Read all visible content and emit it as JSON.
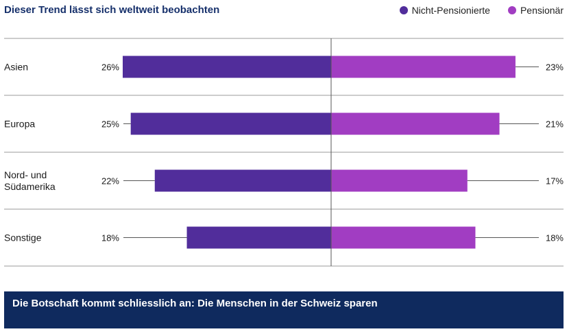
{
  "title": "Dieser Trend lässt sich weltweit beobachten",
  "legend": [
    {
      "label": "Nicht-Pensionierte",
      "color": "#512d9b"
    },
    {
      "label": "Pensionär",
      "color": "#a13dc2"
    }
  ],
  "chart_data": {
    "type": "bar",
    "orientation": "horizontal-diverging",
    "categories": [
      [
        "Asien"
      ],
      [
        "Europa"
      ],
      [
        "Nord- und",
        "Südamerika"
      ],
      [
        "Sonstige"
      ]
    ],
    "series": [
      {
        "name": "Nicht-Pensionierte",
        "values": [
          26,
          25,
          22,
          18
        ],
        "labels": [
          "26%",
          "25%",
          "22%",
          "18%"
        ],
        "color": "#512d9b",
        "side": "left"
      },
      {
        "name": "Pensionär",
        "values": [
          23,
          21,
          17,
          18
        ],
        "labels": [
          "23%",
          "21%",
          "17%",
          "18%"
        ],
        "color": "#a13dc2",
        "side": "right"
      }
    ],
    "xlim": [
      -26,
      26
    ],
    "grid": true
  },
  "footer": {
    "text": "Die Botschaft kommt schliesslich an: Die Menschen in der Schweiz sparen"
  }
}
